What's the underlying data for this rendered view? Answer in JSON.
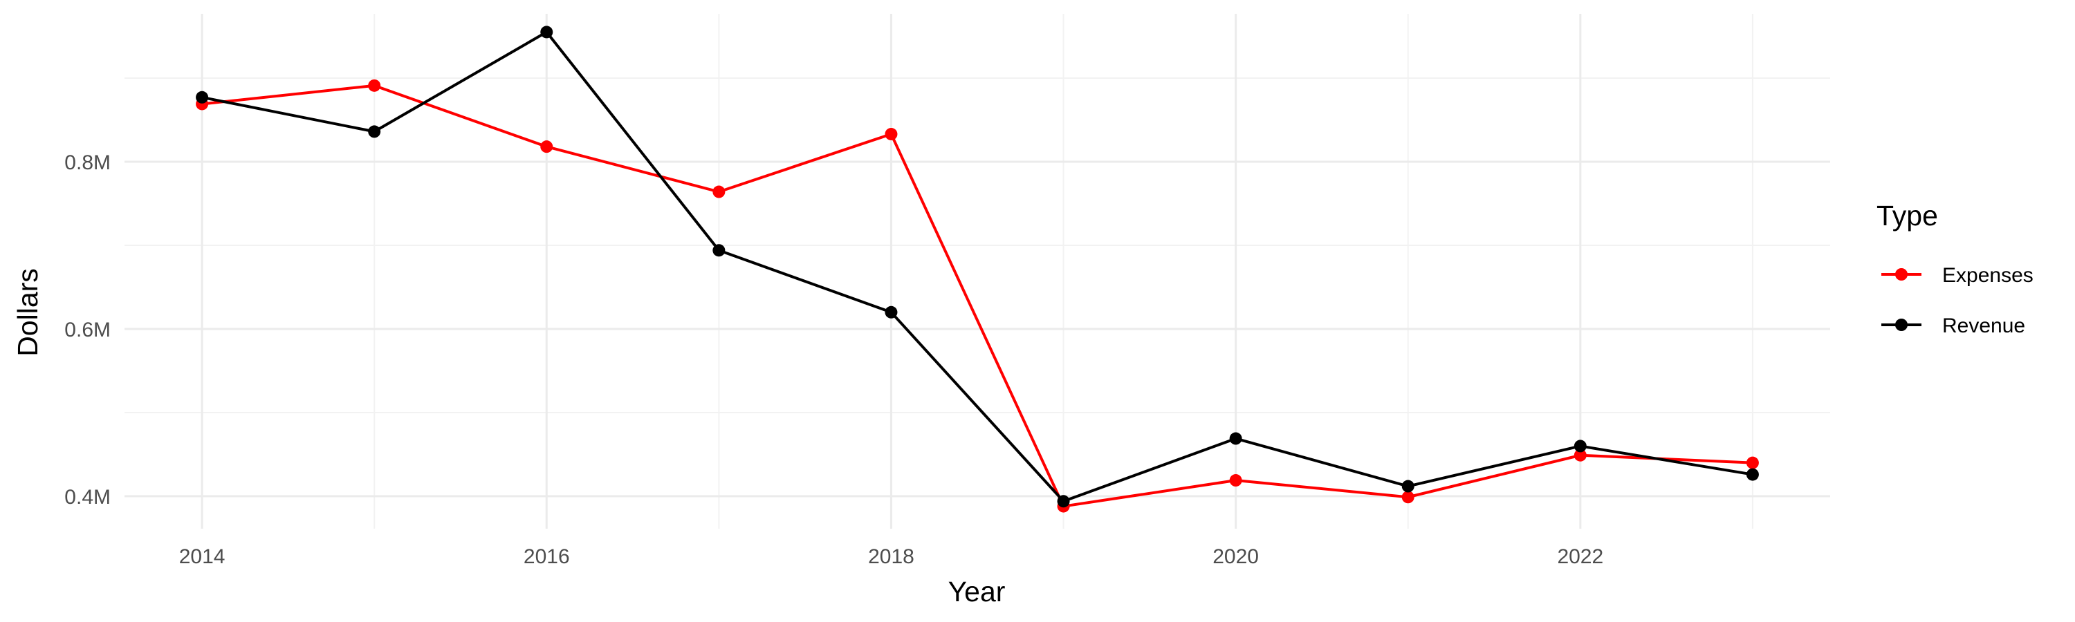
{
  "chart_data": {
    "type": "line",
    "title": "",
    "xlabel": "Year",
    "ylabel": "Dollars",
    "x": [
      2014,
      2015,
      2016,
      2017,
      2018,
      2019,
      2020,
      2021,
      2022,
      2023
    ],
    "xlim": [
      2013.55,
      2023.45
    ],
    "ylim": [
      0.3612,
      0.9768
    ],
    "x_ticks": [
      2014,
      2016,
      2018,
      2020,
      2022
    ],
    "x_tick_labels": [
      "2014",
      "2016",
      "2018",
      "2020",
      "2022"
    ],
    "y_ticks": [
      0.4,
      0.6,
      0.8
    ],
    "y_tick_labels": [
      "0.4M",
      "0.6M",
      "0.8M"
    ],
    "grid": true,
    "legend": {
      "title": "Type",
      "position": "right"
    },
    "series": [
      {
        "name": "Expenses",
        "color": "#ff0000",
        "values": [
          0.869,
          0.891,
          0.818,
          0.764,
          0.833,
          0.388,
          0.419,
          0.399,
          0.449,
          0.44
        ]
      },
      {
        "name": "Revenue",
        "color": "#000000",
        "values": [
          0.877,
          0.836,
          0.955,
          0.694,
          0.62,
          0.394,
          0.469,
          0.412,
          0.46,
          0.426
        ]
      }
    ]
  }
}
